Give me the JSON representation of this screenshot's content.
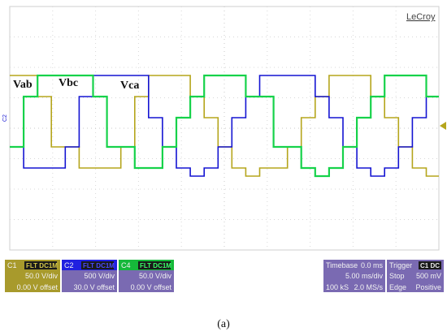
{
  "brand": "LeCroy",
  "colors": {
    "vab": "#b5a51c",
    "vbc": "#1414d2",
    "vca": "#16d24a",
    "grid": "#d8d8d8",
    "grid_axis": "#c9c9c9",
    "panel_gold": "#a89a2c",
    "panel_blue": "#3a3ad6",
    "panel_green": "#16b83a",
    "panel_purple": "#7a6ab2"
  },
  "waveform_labels": {
    "vab": "Vab",
    "vbc": "Vbc",
    "vca": "Vca"
  },
  "markers": {
    "left_channel": "C2"
  },
  "channels": [
    {
      "id": "C1",
      "tag": "FLT DC1M",
      "vdiv": "50.0 V/div",
      "offset": "0.00 V offset"
    },
    {
      "id": "C2",
      "tag": "FLT DC1M",
      "vdiv": "500 V/div",
      "offset": "30.0 V offset"
    },
    {
      "id": "C4",
      "tag": "FLT DC1M",
      "vdiv": "50.0 V/div",
      "offset": "0.00 V offset"
    }
  ],
  "timebase": {
    "label": "Timebase",
    "value": "0.0 ms",
    "div": "5.00 ms/div",
    "samples": "100 kS",
    "rate": "2.0 MS/s"
  },
  "trigger": {
    "label": "Trigger",
    "tag": "C1 DC",
    "mode": "Stop",
    "level": "500 mV",
    "type": "Edge",
    "slope": "Positive"
  },
  "caption": "(a)"
}
